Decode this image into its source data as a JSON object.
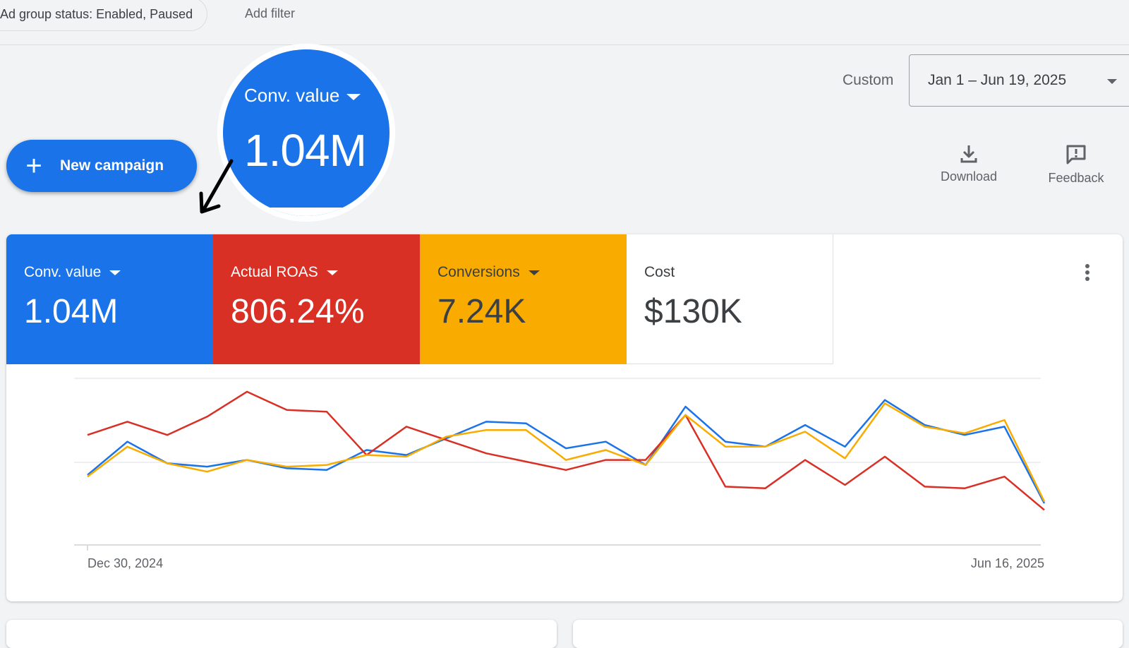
{
  "filters": {
    "active_chip": "Ad group status: Enabled, Paused",
    "add_filter": "Add filter"
  },
  "date_range": {
    "label": "Custom",
    "value": "Jan 1 – Jun 19, 2025"
  },
  "new_campaign": {
    "label": "New campaign"
  },
  "tools": {
    "download": "Download",
    "feedback": "Feedback"
  },
  "callout": {
    "label": "Conv. value",
    "value": "1.04M"
  },
  "metrics": [
    {
      "label": "Conv. value",
      "value": "1.04M",
      "color": "#1a73e8"
    },
    {
      "label": "Actual ROAS",
      "value": "806.24%",
      "color": "#d93025"
    },
    {
      "label": "Conversions",
      "value": "7.24K",
      "color": "#f9ab00"
    },
    {
      "label": "Cost",
      "value": "$130K",
      "color": "#ffffff"
    }
  ],
  "chart_data": {
    "type": "line",
    "x_start_label": "Dec 30, 2024",
    "x_end_label": "Jun 16, 2025",
    "gridlines": true,
    "ylim": [
      0,
      100
    ],
    "series": [
      {
        "name": "Conv. value",
        "color": "#1a73e8",
        "values": [
          42,
          62,
          49,
          47,
          51,
          46,
          45,
          57,
          54,
          64,
          74,
          73,
          58,
          62,
          48,
          83,
          62,
          59,
          72,
          59,
          87,
          72,
          66,
          71,
          25
        ]
      },
      {
        "name": "Actual ROAS",
        "color": "#d93025",
        "values": [
          66,
          74,
          66,
          77,
          92,
          81,
          80,
          54,
          71,
          63,
          55,
          50,
          45,
          51,
          51,
          78,
          35,
          34,
          51,
          36,
          53,
          35,
          34,
          41,
          21
        ]
      },
      {
        "name": "Conversions",
        "color": "#f9ab00",
        "values": [
          41,
          59,
          49,
          44,
          51,
          47,
          48,
          54,
          53,
          65,
          69,
          69,
          51,
          57,
          48,
          78,
          59,
          59,
          68,
          52,
          85,
          71,
          67,
          75,
          26
        ]
      }
    ]
  }
}
